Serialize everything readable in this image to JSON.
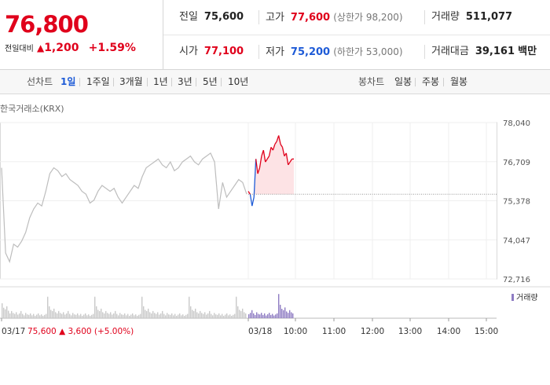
{
  "header": {
    "price": "76,800",
    "change_label": "전일대비",
    "change_arrow": "▲",
    "change_value": "1,200",
    "change_pct": "+1.59%"
  },
  "stats": {
    "prev_close": {
      "label": "전일",
      "value": "75,600"
    },
    "high": {
      "label": "고가",
      "value": "77,600",
      "sub": "(상한가 98,200)"
    },
    "volume": {
      "label": "거래량",
      "value": "511,077"
    },
    "open": {
      "label": "시가",
      "value": "77,100"
    },
    "low": {
      "label": "저가",
      "value": "75,200",
      "sub": "(하한가 53,000)"
    },
    "amount": {
      "label": "거래대금",
      "value": "39,161",
      "unit": "백만"
    }
  },
  "toolbar": {
    "line_label": "선차트",
    "line_items": [
      "1일",
      "1주일",
      "3개월",
      "1년",
      "3년",
      "5년",
      "10년"
    ],
    "active_index": 0,
    "candle_label": "봉차트",
    "candle_items": [
      "일봉",
      "주봉",
      "월봉"
    ]
  },
  "source": "한국거래소(KRX)",
  "colors": {
    "up": "#e0001b",
    "down": "#1e5bd7",
    "prev_line": "#bdbdbd",
    "volume_prev": "#c9c9c9",
    "volume_today": "#8e7cc3"
  },
  "footer": {
    "prev_date": "03/17",
    "prev_close": "75,600",
    "prev_arrow": "▲",
    "prev_change": "3,600",
    "prev_pct": "(+5.00%)"
  },
  "chart_data": {
    "type": "line",
    "y_ticks": [
      "78,040",
      "76,709",
      "75,378",
      "74,047",
      "72,716"
    ],
    "ylim": [
      72716,
      78040
    ],
    "reference_line": 75600,
    "x_labels": [
      "03/17",
      "03/18",
      "10:00",
      "11:00",
      "12:00",
      "13:00",
      "14:00",
      "15:00"
    ],
    "volume_legend": "거래량",
    "series": [
      {
        "day": "03/17",
        "values": [
          76500,
          73600,
          73300,
          73900,
          73800,
          74000,
          74300,
          74800,
          75100,
          75300,
          75200,
          75700,
          76300,
          76500,
          76400,
          76200,
          76300,
          76100,
          76000,
          75900,
          75700,
          75600,
          75300,
          75400,
          75700,
          75900,
          75800,
          75700,
          75800,
          75500,
          75300,
          75500,
          75700,
          75900,
          75800,
          76200,
          76500,
          76600,
          76700,
          76800,
          76600,
          76500,
          76700,
          76400,
          76500,
          76700,
          76800,
          76900,
          76700,
          76600,
          76800,
          76900,
          77000,
          76700,
          75100,
          76000,
          75500,
          75700,
          75900,
          76100,
          76000,
          75600
        ]
      },
      {
        "day": "03/18",
        "values": [
          75700,
          75600,
          75200,
          75500,
          76800,
          76300,
          76500,
          76900,
          77100,
          76700,
          76800,
          76900,
          77200,
          77100,
          77300,
          77400,
          77600,
          77300,
          77200,
          76900,
          77000,
          76600,
          76700,
          76800,
          76800
        ]
      }
    ]
  }
}
